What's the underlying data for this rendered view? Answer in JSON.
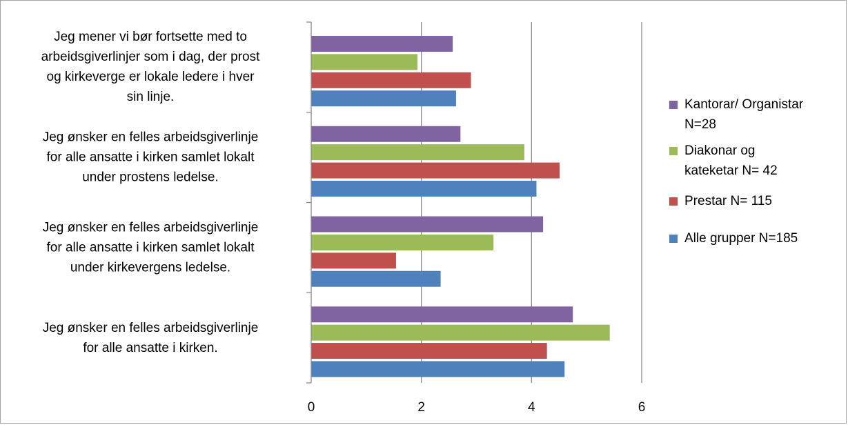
{
  "chart_data": {
    "type": "bar",
    "orientation": "horizontal",
    "title": "",
    "xlabel": "",
    "ylabel": "",
    "xlim": [
      0,
      6
    ],
    "x_ticks": [
      "0",
      "2",
      "4",
      "6"
    ],
    "grid": true,
    "legend_position": "right",
    "categories": [
      "Jeg mener vi bør fortsette med to arbeidsgiverlinjer som i dag, der prost og kirkeverge er lokale ledere i hver sin linje.",
      "Jeg ønsker en felles arbeidsgiverlinje for alle ansatte i kirken samlet lokalt under prostens ledelse.",
      "Jeg ønsker en felles arbeidsgiverlinje for alle ansatte i kirken samlet lokalt under kirkevergens ledelse.",
      "Jeg ønsker en felles arbeidsgiverlinje for alle ansatte i kirken."
    ],
    "category_lines": [
      [
        "Jeg mener vi bør fortsette med to",
        "arbeidsgiverlinjer som i dag, der prost",
        "og kirkeverge er lokale ledere i hver",
        "sin linje."
      ],
      [
        "Jeg ønsker en felles arbeidsgiverlinje",
        "for alle ansatte i kirken samlet lokalt",
        "under prostens ledelse."
      ],
      [
        "Jeg ønsker en felles arbeidsgiverlinje",
        "for alle ansatte i kirken samlet lokalt",
        "under kirkevergens ledelse."
      ],
      [
        "Jeg ønsker en felles arbeidsgiverlinje",
        "for alle ansatte i kirken."
      ]
    ],
    "series": [
      {
        "name": "Kantorar/ Organistar N=28",
        "legend_lines": [
          "Kantorar/ Organistar",
          "N=28"
        ],
        "color": "#8064a2",
        "values": [
          2.57,
          2.71,
          4.21,
          4.75
        ]
      },
      {
        "name": "Diakonar og kateketar N= 42",
        "legend_lines": [
          "Diakonar og",
          "kateketar N= 42"
        ],
        "color": "#9bbb59",
        "values": [
          1.93,
          3.87,
          3.31,
          5.42
        ]
      },
      {
        "name": "Prestar N= 115",
        "legend_lines": [
          "Prestar N= 115"
        ],
        "color": "#c0504d",
        "values": [
          2.9,
          4.51,
          1.54,
          4.28
        ]
      },
      {
        "name": "Alle grupper N=185",
        "legend_lines": [
          "Alle grupper N=185"
        ],
        "color": "#4f81bd",
        "values": [
          2.63,
          4.09,
          2.35,
          4.6
        ]
      }
    ]
  }
}
